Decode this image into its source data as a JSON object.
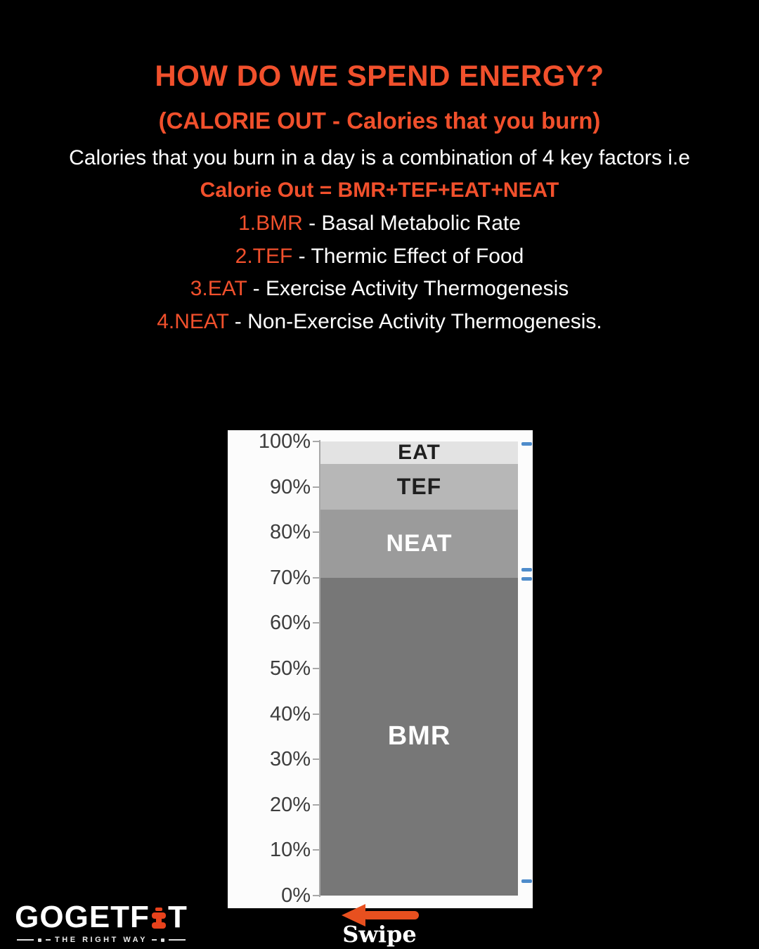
{
  "page": {
    "background": "#000000",
    "accent_color": "#F1502C"
  },
  "header": {
    "title": "HOW DO WE SPEND ENERGY?",
    "subtitle": "(CALORIE OUT - Calories that you burn)",
    "intro": "Calories that you burn in a day is a combination of 4 key factors i.e",
    "formula": "Calorie Out = BMR+TEF+EAT+NEAT",
    "factors": [
      {
        "num": "1.BMR",
        "desc": " - Basal Metabolic Rate"
      },
      {
        "num": "2.TEF",
        "desc": " - Thermic Effect of Food"
      },
      {
        "num": "3.EAT",
        "desc": " - Exercise Activity Thermogenesis"
      },
      {
        "num": "4.NEAT",
        "desc": " - Non-Exercise Activity Thermogenesis."
      }
    ]
  },
  "chart_data": {
    "type": "bar",
    "stacked": true,
    "categories": [
      ""
    ],
    "series_order": "top-to-bottom",
    "series": [
      {
        "name": "EAT",
        "values": [
          5
        ],
        "color": "#e3e3e3",
        "label_color": "#1f1f1f",
        "label_size": 30
      },
      {
        "name": "TEF",
        "values": [
          10
        ],
        "color": "#b7b7b7",
        "label_color": "#1f1f1f",
        "label_size": 32
      },
      {
        "name": "NEAT",
        "values": [
          15
        ],
        "color": "#9b9b9b",
        "label_color": "#ffffff",
        "label_size": 34
      },
      {
        "name": "BMR",
        "values": [
          70
        ],
        "color": "#777777",
        "label_color": "#ffffff",
        "label_size": 38
      }
    ],
    "title": "",
    "xlabel": "",
    "ylabel": "",
    "ylim": [
      0,
      100
    ],
    "yticks": [
      100,
      90,
      80,
      70,
      60,
      50,
      40,
      30,
      20,
      10,
      0
    ],
    "ytick_format": "{v}%",
    "grid": false,
    "legend": "none",
    "plot_background": "#fcfcfc"
  },
  "footer": {
    "swipe_label": "Swipe",
    "arrow_color": "#E8501F",
    "logo": {
      "text_before": "GOGETF",
      "text_after": "T",
      "dumbbell_icon_color": "#E8421C",
      "tagline": "THE RIGHT WAY"
    }
  }
}
